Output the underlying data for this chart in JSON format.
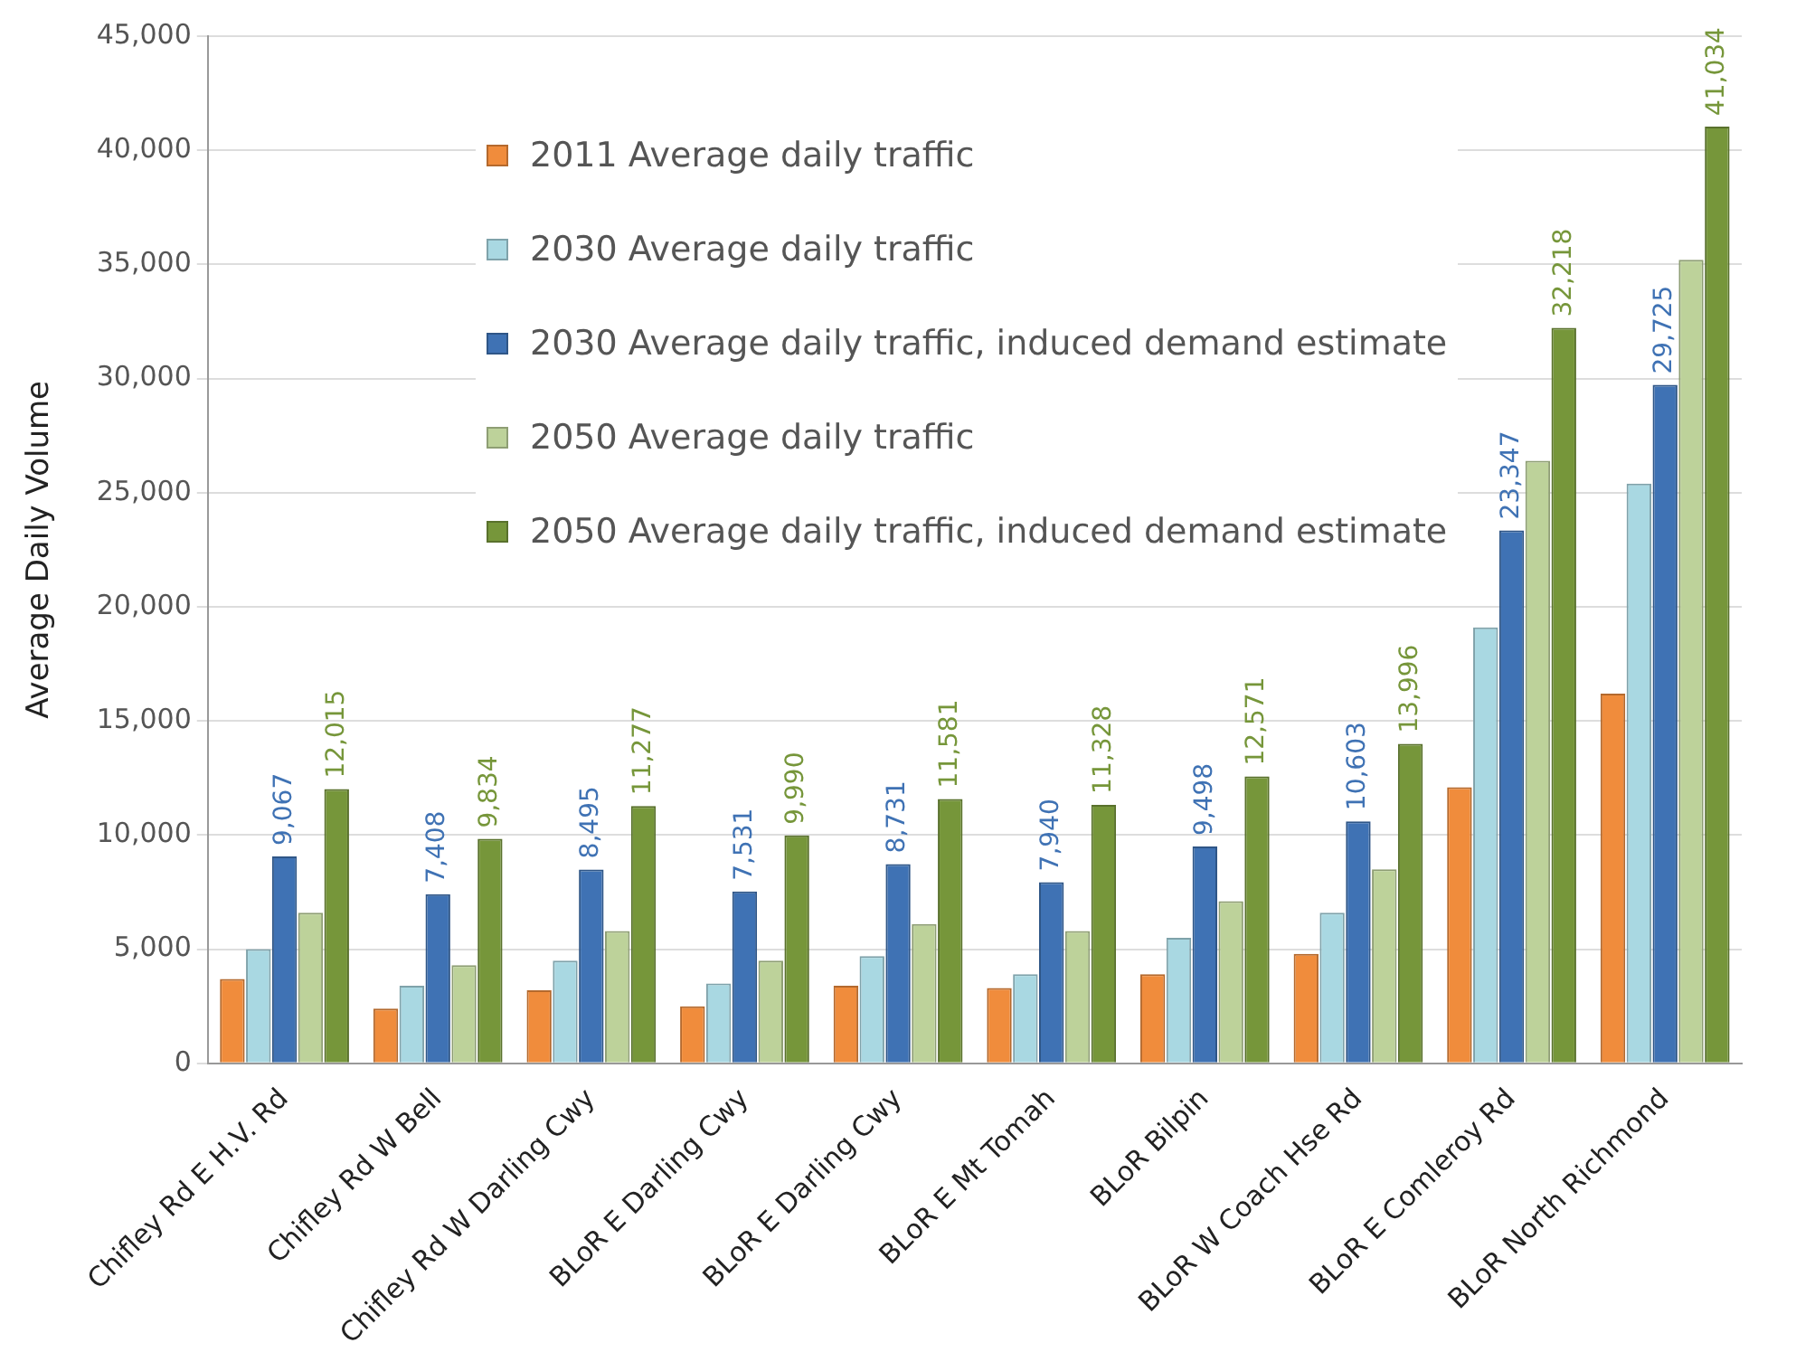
{
  "chart_data": {
    "type": "bar",
    "ylabel": "Average Daily Volume",
    "categories": [
      "Chifley Rd E H.V. Rd",
      "Chifley Rd W Bell",
      "Chifley Rd W Darling Cwy",
      "BLoR E Darling Cwy",
      "BLoR E Darling Cwy",
      "BLoR E Mt Tomah",
      "BLoR Bilpin",
      "BLoR W Coach Hse Rd",
      "BLoR E Comleroy Rd",
      "BLoR North Richmond"
    ],
    "series": [
      {
        "name": "2011 Average daily traffic",
        "color": "#f08c3c",
        "values": [
          3700,
          2400,
          3200,
          2500,
          3400,
          3300,
          3900,
          4800,
          12100,
          16200
        ]
      },
      {
        "name": "2030 Average daily traffic",
        "color": "#a9d8e2",
        "values": [
          5000,
          3400,
          4500,
          3500,
          4700,
          3900,
          5500,
          6600,
          19100,
          25400
        ]
      },
      {
        "name": "2030 Average daily traffic, induced demand estimate",
        "color": "#3f72b4",
        "values": [
          9067,
          7408,
          8495,
          7531,
          8731,
          7940,
          9498,
          10603,
          23347,
          29725
        ],
        "value_labels": [
          "9,067",
          "7,408",
          "8,495",
          "7,531",
          "8,731",
          "7,940",
          "9,498",
          "10,603",
          "23,347",
          "29,725"
        ]
      },
      {
        "name": "2050 Average daily traffic",
        "color": "#bdd29a",
        "values": [
          6600,
          4300,
          5800,
          4500,
          6100,
          5800,
          7100,
          8500,
          26400,
          35200
        ]
      },
      {
        "name": "2050 Average daily traffic, induced demand estimate",
        "color": "#76963a",
        "values": [
          12015,
          9834,
          11277,
          9990,
          11581,
          11328,
          12571,
          13996,
          32218,
          41034
        ],
        "value_labels": [
          "12,015",
          "9,834",
          "11,277",
          "9,990",
          "11,581",
          "11,328",
          "12,571",
          "13,996",
          "32,218",
          "41,034"
        ]
      }
    ],
    "ylim": [
      0,
      45000
    ],
    "yticks": [
      {
        "value": 0,
        "label": "0"
      },
      {
        "value": 5000,
        "label": "5,000"
      },
      {
        "value": 10000,
        "label": "10,000"
      },
      {
        "value": 15000,
        "label": "15,000"
      },
      {
        "value": 20000,
        "label": "20,000"
      },
      {
        "value": 25000,
        "label": "25,000"
      },
      {
        "value": 30000,
        "label": "30,000"
      },
      {
        "value": 35000,
        "label": "35,000"
      },
      {
        "value": 40000,
        "label": "40,000"
      },
      {
        "value": 45000,
        "label": "45,000"
      }
    ],
    "grid": "y",
    "legend": "top left"
  }
}
